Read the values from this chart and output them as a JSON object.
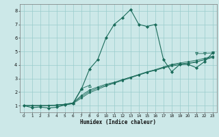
{
  "title": "",
  "xlabel": "Humidex (Indice chaleur)",
  "bg_color": "#cce8e8",
  "grid_color": "#99cccc",
  "line_color": "#1a6b5a",
  "xlim": [
    -0.5,
    23.5
  ],
  "ylim": [
    0.5,
    8.5
  ],
  "xticks": [
    0,
    1,
    2,
    3,
    4,
    5,
    6,
    7,
    8,
    9,
    10,
    11,
    12,
    13,
    14,
    15,
    16,
    17,
    18,
    19,
    20,
    21,
    22,
    23
  ],
  "yticks": [
    1,
    2,
    3,
    4,
    5,
    6,
    7,
    8
  ],
  "main_line": {
    "x": [
      0,
      1,
      2,
      3,
      4,
      5,
      6,
      7,
      8,
      9,
      10,
      11,
      12,
      13,
      14,
      15,
      16,
      17,
      18,
      19,
      20,
      21,
      22,
      23
    ],
    "y": [
      1.0,
      0.85,
      0.9,
      0.82,
      0.88,
      1.05,
      1.15,
      2.2,
      3.7,
      4.4,
      6.0,
      7.0,
      7.5,
      8.1,
      7.0,
      6.85,
      7.0,
      4.4,
      3.5,
      4.05,
      4.05,
      3.8,
      4.25,
      4.9
    ]
  },
  "band_lines": [
    [
      1.0,
      1.0,
      1.0,
      1.0,
      1.0,
      1.05,
      1.15,
      1.55,
      1.95,
      2.2,
      2.45,
      2.65,
      2.85,
      3.05,
      3.25,
      3.45,
      3.65,
      3.85,
      4.05,
      4.15,
      4.25,
      4.35,
      4.5,
      4.65
    ],
    [
      1.0,
      1.0,
      1.0,
      1.0,
      1.05,
      1.1,
      1.2,
      1.65,
      2.05,
      2.3,
      2.5,
      2.7,
      2.9,
      3.1,
      3.3,
      3.5,
      3.65,
      3.82,
      3.98,
      4.08,
      4.15,
      4.25,
      4.38,
      4.55
    ],
    [
      1.0,
      1.0,
      1.0,
      1.0,
      1.05,
      1.1,
      1.2,
      1.75,
      2.15,
      2.38,
      2.58,
      2.72,
      2.92,
      3.1,
      3.28,
      3.46,
      3.6,
      3.78,
      3.92,
      4.02,
      4.1,
      4.2,
      4.42,
      4.62
    ]
  ],
  "triangle_up_line": {
    "x": [
      6,
      7,
      8
    ],
    "y": [
      1.2,
      2.25,
      2.5
    ]
  },
  "triangle_down_line": {
    "x": [
      21,
      22,
      23
    ],
    "y": [
      4.85,
      4.85,
      4.9
    ]
  }
}
